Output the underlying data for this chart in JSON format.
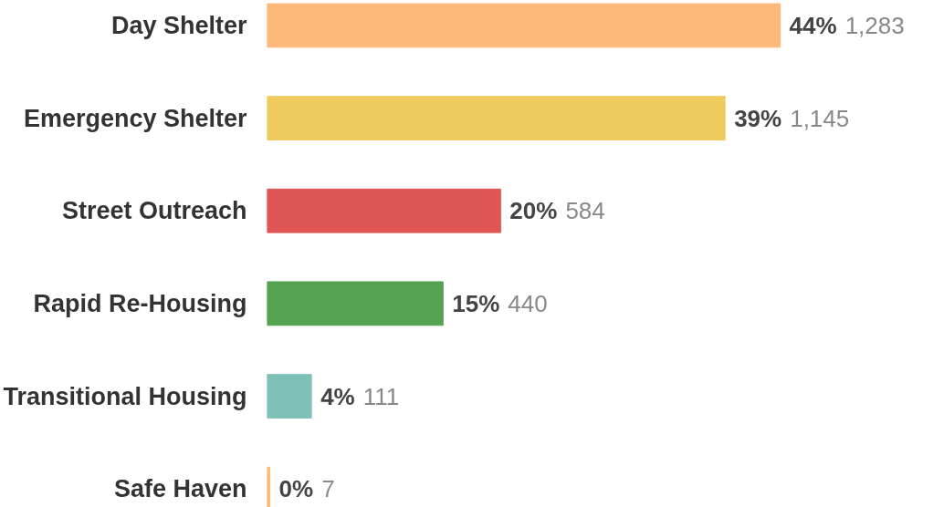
{
  "chart_data": {
    "type": "bar",
    "orientation": "horizontal",
    "categories": [
      "Day Shelter",
      "Emergency Shelter",
      "Street Outreach",
      "Rapid Re-Housing",
      "Transitional Housing",
      "Safe Haven"
    ],
    "values": [
      1283,
      1145,
      584,
      440,
      111,
      7
    ],
    "colors": [
      "#fdb97b",
      "#efcb5e",
      "#e05555",
      "#55a251",
      "#7fc1b8",
      "#fdb97b"
    ],
    "value_labels": [
      "44% 1,283",
      "39% 1,145",
      "20% 584",
      "15% 440",
      "4% 111",
      "0% 7"
    ],
    "grid": false
  }
}
